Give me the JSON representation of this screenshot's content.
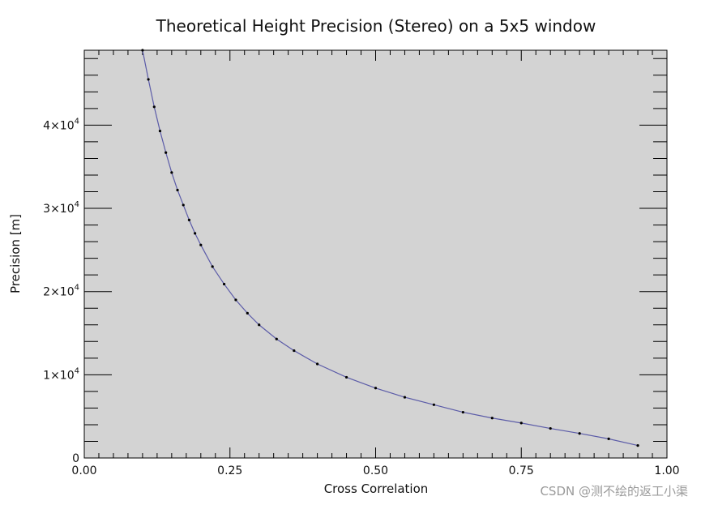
{
  "watermark": "CSDN @测不绘的返工小渠",
  "chart_data": {
    "type": "line",
    "title": "Theoretical Height Precision (Stereo) on a 5x5 window",
    "xlabel": "Cross Correlation",
    "ylabel": "Precision [m]",
    "xlim": [
      0,
      1
    ],
    "ylim": [
      0,
      49000
    ],
    "x_ticks": [
      {
        "value": 0,
        "label": "0.00"
      },
      {
        "value": 0.25,
        "label": "0.25"
      },
      {
        "value": 0.5,
        "label": "0.50"
      },
      {
        "value": 0.75,
        "label": "0.75"
      },
      {
        "value": 1,
        "label": "1.00"
      }
    ],
    "y_ticks": [
      {
        "value": 0,
        "label": "0",
        "exp": ""
      },
      {
        "value": 10000,
        "label": "1×10",
        "exp": "4"
      },
      {
        "value": 20000,
        "label": "2×10",
        "exp": "4"
      },
      {
        "value": 30000,
        "label": "3×10",
        "exp": "4"
      },
      {
        "value": 40000,
        "label": "4×10",
        "exp": "4"
      }
    ],
    "plot_background": "#d3d3d3",
    "line_color": "#5b5ba8",
    "marker_color": "#000000",
    "grid": false,
    "series": [
      {
        "x": [
          0.1,
          0.11,
          0.12,
          0.13,
          0.14,
          0.15,
          0.16,
          0.17,
          0.18,
          0.19,
          0.2,
          0.22,
          0.24,
          0.26,
          0.28,
          0.3,
          0.33,
          0.36,
          0.4,
          0.45,
          0.5,
          0.55,
          0.6,
          0.65,
          0.7,
          0.75,
          0.8,
          0.85,
          0.9,
          0.95
        ],
        "y": [
          49000,
          45500,
          42200,
          39300,
          36700,
          34300,
          32200,
          30400,
          28600,
          27000,
          25600,
          23000,
          20900,
          19000,
          17400,
          16000,
          14300,
          12900,
          11300,
          9700,
          8400,
          7300,
          6400,
          5500,
          4800,
          4200,
          3550,
          2950,
          2300,
          1500
        ]
      }
    ]
  }
}
